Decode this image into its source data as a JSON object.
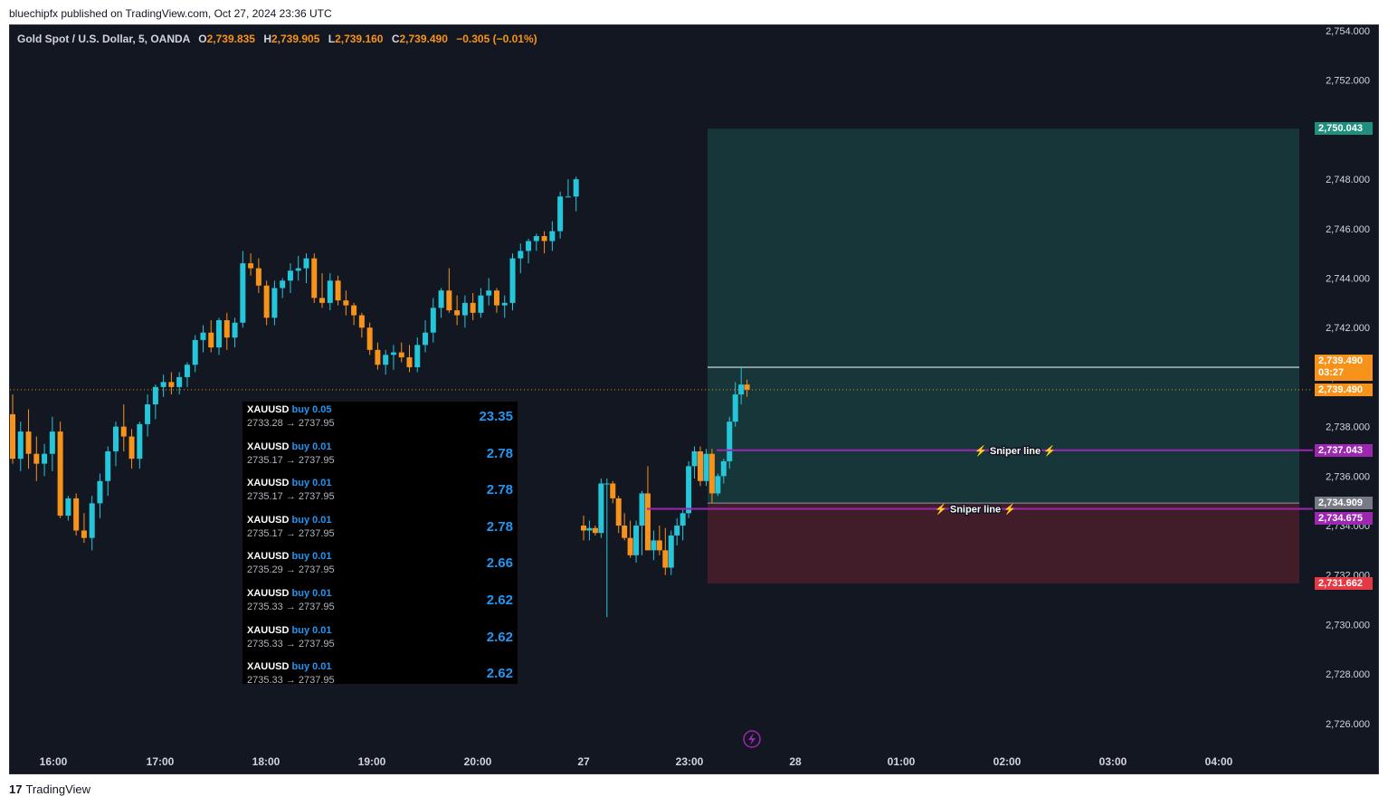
{
  "caption": "bluechipfx published on TradingView.com, Oct 27, 2024 23:36 UTC",
  "footer": {
    "brand": "TradingView"
  },
  "legend": {
    "symbol": "Gold Spot / U.S. Dollar, 5, OANDA",
    "o_label": "O",
    "o": "2,739.835",
    "h_label": "H",
    "h": "2,739.905",
    "l_label": "L",
    "l": "2,739.160",
    "c_label": "C",
    "c": "2,739.490",
    "change": "−0.305 (−0.01%)"
  },
  "colors": {
    "bg": "#131722",
    "up": "#26c6da",
    "down": "#f7931a",
    "target": "#1f6f66",
    "stop": "#7a2634",
    "sniper": "#9c27b0"
  },
  "trades": [
    {
      "symbol": "XAUUSD",
      "side": "buy 0.05",
      "range": "2733.28 → 2737.95",
      "pnl": "23.35"
    },
    {
      "symbol": "XAUUSD",
      "side": "buy 0.01",
      "range": "2735.17 → 2737.95",
      "pnl": "2.78"
    },
    {
      "symbol": "XAUUSD",
      "side": "buy 0.01",
      "range": "2735.17 → 2737.95",
      "pnl": "2.78"
    },
    {
      "symbol": "XAUUSD",
      "side": "buy 0.01",
      "range": "2735.17 → 2737.95",
      "pnl": "2.78"
    },
    {
      "symbol": "XAUUSD",
      "side": "buy 0.01",
      "range": "2735.29 → 2737.95",
      "pnl": "2.66"
    },
    {
      "symbol": "XAUUSD",
      "side": "buy 0.01",
      "range": "2735.33 → 2737.95",
      "pnl": "2.62"
    },
    {
      "symbol": "XAUUSD",
      "side": "buy 0.01",
      "range": "2735.33 → 2737.95",
      "pnl": "2.62"
    },
    {
      "symbol": "XAUUSD",
      "side": "buy 0.01",
      "range": "2735.33 → 2737.95",
      "pnl": "2.62"
    }
  ],
  "price_tags": {
    "target": "2,750.043",
    "last": "2,739.490",
    "countdown": "03:27",
    "last2": "2,739.490",
    "sniper1": "2,737.043",
    "entry": "2,734.909",
    "sniper2": "2,734.675",
    "stop": "2,731.662"
  },
  "sniper_label": "⚡ Sniper line ⚡",
  "chart_data": {
    "type": "candlestick",
    "y_ticks": [
      "2,754.000",
      "2,752.000",
      "2,750.000",
      "2,748.000",
      "2,746.000",
      "2,744.000",
      "2,742.000",
      "2,740.000",
      "2,738.000",
      "2,736.000",
      "2,734.000",
      "2,732.000",
      "2,730.000",
      "2,728.000",
      "2,726.000"
    ],
    "x_ticks": [
      "16:00",
      "17:00",
      "18:00",
      "19:00",
      "20:00",
      "27",
      "23:00",
      "28",
      "01:00",
      "02:00",
      "03:00",
      "04:00"
    ],
    "ylim": [
      2725,
      2754.2
    ],
    "levels": {
      "target": 2750.043,
      "last": 2739.49,
      "sniper1": 2737.043,
      "entry": 2734.909,
      "sniper2": 2734.675,
      "stop": 2731.662,
      "top_line": 2740.4
    },
    "candles": [
      [
        2738.5,
        2739.3,
        2736.5,
        2736.7
      ],
      [
        2736.7,
        2738.2,
        2736.2,
        2737.8
      ],
      [
        2737.8,
        2738.7,
        2736.3,
        2736.9
      ],
      [
        2736.9,
        2737.6,
        2735.8,
        2736.5
      ],
      [
        2736.5,
        2737.3,
        2736.0,
        2736.9
      ],
      [
        2736.9,
        2738.4,
        2736.2,
        2737.8
      ],
      [
        2737.8,
        2738.2,
        2734.3,
        2734.4
      ],
      [
        2734.4,
        2735.2,
        2734.2,
        2735.1
      ],
      [
        2735.1,
        2735.3,
        2733.6,
        2733.8
      ],
      [
        2733.8,
        2734.5,
        2733.3,
        2733.5
      ],
      [
        2733.5,
        2735.2,
        2733.0,
        2734.9
      ],
      [
        2734.9,
        2736.1,
        2734.3,
        2735.8
      ],
      [
        2735.8,
        2737.2,
        2735.2,
        2737.0
      ],
      [
        2737.0,
        2738.2,
        2736.4,
        2738.0
      ],
      [
        2738.0,
        2738.9,
        2737.0,
        2737.6
      ],
      [
        2737.6,
        2737.9,
        2736.3,
        2736.7
      ],
      [
        2736.7,
        2738.2,
        2736.3,
        2738.1
      ],
      [
        2738.1,
        2739.3,
        2737.6,
        2738.9
      ],
      [
        2738.9,
        2739.7,
        2738.3,
        2739.6
      ],
      [
        2739.6,
        2740.1,
        2739.2,
        2739.8
      ],
      [
        2739.8,
        2740.2,
        2739.3,
        2739.6
      ],
      [
        2739.6,
        2740.2,
        2739.3,
        2740.0
      ],
      [
        2740.0,
        2740.6,
        2739.6,
        2740.5
      ],
      [
        2740.5,
        2741.7,
        2740.2,
        2741.5
      ],
      [
        2741.5,
        2742.1,
        2741.0,
        2741.8
      ],
      [
        2741.8,
        2742.3,
        2741.0,
        2741.2
      ],
      [
        2741.2,
        2742.4,
        2740.9,
        2742.3
      ],
      [
        2742.3,
        2742.6,
        2741.1,
        2741.6
      ],
      [
        2741.6,
        2742.4,
        2741.2,
        2742.2
      ],
      [
        2742.2,
        2745.1,
        2742.0,
        2744.6
      ],
      [
        2744.6,
        2745.0,
        2744.1,
        2744.4
      ],
      [
        2744.4,
        2744.8,
        2743.4,
        2743.7
      ],
      [
        2743.7,
        2743.9,
        2742.1,
        2742.4
      ],
      [
        2742.4,
        2743.9,
        2742.1,
        2743.6
      ],
      [
        2743.6,
        2744.0,
        2743.2,
        2743.9
      ],
      [
        2743.9,
        2744.6,
        2743.4,
        2744.3
      ],
      [
        2744.3,
        2744.9,
        2743.9,
        2744.4
      ],
      [
        2744.4,
        2745.0,
        2743.8,
        2744.8
      ],
      [
        2744.8,
        2745.0,
        2743.0,
        2743.2
      ],
      [
        2743.2,
        2744.2,
        2742.8,
        2743.0
      ],
      [
        2743.0,
        2744.2,
        2742.7,
        2743.9
      ],
      [
        2743.9,
        2744.1,
        2742.9,
        2743.1
      ],
      [
        2743.1,
        2743.5,
        2742.5,
        2742.9
      ],
      [
        2742.9,
        2743.0,
        2742.1,
        2742.5
      ],
      [
        2742.5,
        2742.6,
        2741.6,
        2742.0
      ],
      [
        2742.0,
        2742.2,
        2740.9,
        2741.1
      ],
      [
        2741.1,
        2741.4,
        2740.3,
        2740.5
      ],
      [
        2740.5,
        2741.1,
        2740.1,
        2740.9
      ],
      [
        2740.9,
        2741.3,
        2740.3,
        2741.0
      ],
      [
        2741.0,
        2741.4,
        2740.6,
        2740.8
      ],
      [
        2740.8,
        2741.3,
        2740.2,
        2740.4
      ],
      [
        2740.4,
        2741.6,
        2740.2,
        2741.3
      ],
      [
        2741.3,
        2742.3,
        2741.0,
        2741.8
      ],
      [
        2741.8,
        2743.2,
        2741.4,
        2742.8
      ],
      [
        2742.8,
        2743.6,
        2742.4,
        2743.5
      ],
      [
        2743.5,
        2744.4,
        2742.6,
        2742.7
      ],
      [
        2742.7,
        2743.3,
        2742.1,
        2742.5
      ],
      [
        2742.5,
        2743.3,
        2742.0,
        2743.0
      ],
      [
        2743.0,
        2743.4,
        2742.3,
        2742.6
      ],
      [
        2742.6,
        2743.6,
        2742.4,
        2743.3
      ],
      [
        2743.3,
        2744.0,
        2742.9,
        2743.5
      ],
      [
        2743.5,
        2743.6,
        2742.6,
        2742.9
      ],
      [
        2742.9,
        2743.3,
        2742.4,
        2743.0
      ],
      [
        2743.0,
        2745.0,
        2742.7,
        2744.8
      ],
      [
        2744.8,
        2745.4,
        2744.2,
        2745.1
      ],
      [
        2745.1,
        2745.6,
        2744.6,
        2745.5
      ],
      [
        2745.5,
        2745.8,
        2745.1,
        2745.7
      ],
      [
        2745.7,
        2745.9,
        2745.0,
        2745.5
      ],
      [
        2745.5,
        2746.3,
        2745.1,
        2745.9
      ],
      [
        2745.9,
        2747.5,
        2745.6,
        2747.3
      ],
      [
        2747.3,
        2748.0,
        2747.3,
        2747.3
      ],
      [
        2747.3,
        2748.1,
        2746.7,
        2748.0
      ],
      [
        2734.0,
        2734.4,
        2733.4,
        2733.8
      ],
      [
        2733.8,
        2734.2,
        2733.4,
        2733.9
      ],
      [
        2733.9,
        2734.0,
        2733.6,
        2733.7
      ],
      [
        2733.7,
        2735.9,
        2733.5,
        2735.7
      ],
      [
        2735.7,
        2735.9,
        2730.3,
        2735.7
      ],
      [
        2735.7,
        2735.8,
        2734.9,
        2735.1
      ],
      [
        2735.1,
        2735.2,
        2733.7,
        2734.0
      ],
      [
        2734.0,
        2734.5,
        2733.4,
        2733.5
      ],
      [
        2733.5,
        2734.2,
        2732.7,
        2732.8
      ],
      [
        2732.8,
        2734.2,
        2732.5,
        2734.0
      ],
      [
        2734.0,
        2735.4,
        2732.8,
        2735.3
      ],
      [
        2735.3,
        2736.4,
        2733.0,
        2733.0
      ],
      [
        2733.0,
        2733.8,
        2732.6,
        2733.4
      ],
      [
        2733.4,
        2734.0,
        2732.8,
        2733.0
      ],
      [
        2733.0,
        2733.9,
        2732.0,
        2732.3
      ],
      [
        2732.3,
        2733.8,
        2732.0,
        2733.6
      ],
      [
        2733.6,
        2734.3,
        2733.2,
        2734.0
      ],
      [
        2734.0,
        2734.7,
        2733.4,
        2734.5
      ],
      [
        2734.5,
        2736.6,
        2734.3,
        2736.4
      ],
      [
        2736.4,
        2737.2,
        2735.9,
        2737.0
      ],
      [
        2737.0,
        2737.2,
        2735.6,
        2735.8
      ],
      [
        2735.8,
        2737.1,
        2735.6,
        2736.9
      ],
      [
        2736.9,
        2737.1,
        2734.9,
        2735.3
      ],
      [
        2735.3,
        2736.1,
        2735.2,
        2736.0
      ],
      [
        2736.0,
        2736.7,
        2735.7,
        2736.6
      ],
      [
        2736.6,
        2738.4,
        2736.3,
        2738.2
      ],
      [
        2738.2,
        2739.8,
        2738.0,
        2739.3
      ],
      [
        2739.3,
        2740.4,
        2738.9,
        2739.7
      ],
      [
        2739.7,
        2739.9,
        2739.2,
        2739.49
      ]
    ]
  }
}
